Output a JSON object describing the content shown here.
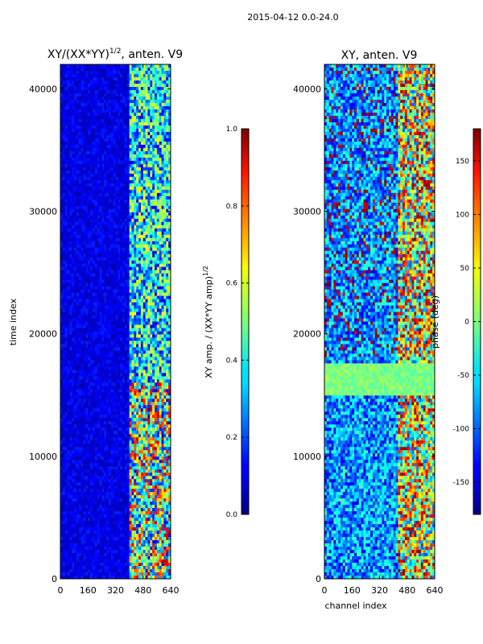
{
  "figure": {
    "suptitle": "2015-04-12 0.0-24.0"
  },
  "chart_data": [
    {
      "type": "heatmap",
      "title_main": "XY/(XX*YY)",
      "title_exp": "1/2",
      "title_suffix": ", anten. V9",
      "xlabel": "",
      "ylabel": "time index",
      "xlim": [
        0,
        640
      ],
      "ylim": [
        0,
        42000
      ],
      "xticks": [
        "0",
        "160",
        "320",
        "480",
        "640"
      ],
      "yticks": [
        "0",
        "10000",
        "20000",
        "30000",
        "40000"
      ],
      "colorbar": {
        "label_main": "XY amp. / (XX*YY amp)",
        "label_exp": "1/2",
        "range": [
          0.0,
          1.0
        ],
        "ticks": [
          "0.0",
          "0.2",
          "0.4",
          "0.6",
          "0.8",
          "1.0"
        ],
        "colormap": "jet"
      },
      "description_features": {
        "quiet_channels": [
          0,
          400
        ],
        "active_channels": [
          400,
          640
        ],
        "high_amplitude_time_ranges": [
          [
            0,
            16000
          ],
          [
            20000,
            42000
          ]
        ]
      }
    },
    {
      "type": "heatmap",
      "title_main": "XY, anten. V9",
      "xlabel": "channel index",
      "ylabel": "",
      "xlim": [
        0,
        640
      ],
      "ylim": [
        0,
        42000
      ],
      "xticks": [
        "0",
        "160",
        "320",
        "480",
        "640"
      ],
      "yticks": [
        "0",
        "10000",
        "20000",
        "30000",
        "40000"
      ],
      "colorbar": {
        "label_main": "phase (deg)",
        "range": [
          -180,
          180
        ],
        "ticks": [
          "-150",
          "-100",
          "-50",
          "0",
          "50",
          "100",
          "150"
        ],
        "colormap": "jet"
      }
    }
  ]
}
